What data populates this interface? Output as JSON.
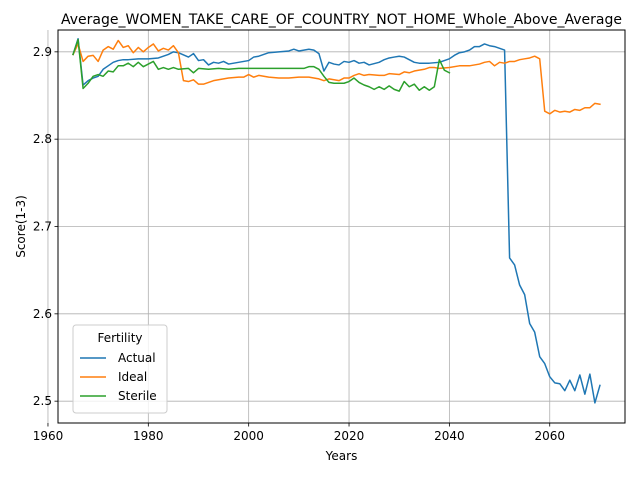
{
  "chart_data": {
    "type": "line",
    "title": "Average_WOMEN_TAKE_CARE_OF_COUNTRY_NOT_HOME_Whole_Above_Average",
    "xlabel": "Years",
    "ylabel": "Score(1-3)",
    "xlim": [
      1962,
      2075
    ],
    "ylim": [
      2.475,
      2.925
    ],
    "xticks": [
      1960,
      1980,
      2000,
      2020,
      2040,
      2060
    ],
    "yticks": [
      2.5,
      2.6,
      2.7,
      2.8,
      2.9
    ],
    "grid": true,
    "legend": {
      "title": "Fertility",
      "position": "lower-left"
    },
    "series": [
      {
        "name": "Actual",
        "color": "#1f77b4",
        "points": [
          [
            1965,
            2.897
          ],
          [
            1966,
            2.915
          ],
          [
            1967,
            2.862
          ],
          [
            1968,
            2.867
          ],
          [
            1969,
            2.87
          ],
          [
            1970,
            2.872
          ],
          [
            1971,
            2.88
          ],
          [
            1972,
            2.884
          ],
          [
            1973,
            2.888
          ],
          [
            1974,
            2.89
          ],
          [
            1975,
            2.891
          ],
          [
            1976,
            2.891
          ],
          [
            1978,
            2.892
          ],
          [
            1980,
            2.892
          ],
          [
            1982,
            2.893
          ],
          [
            1984,
            2.897
          ],
          [
            1985,
            2.9
          ],
          [
            1986,
            2.899
          ],
          [
            1988,
            2.894
          ],
          [
            1989,
            2.898
          ],
          [
            1990,
            2.89
          ],
          [
            1991,
            2.891
          ],
          [
            1992,
            2.885
          ],
          [
            1993,
            2.888
          ],
          [
            1994,
            2.887
          ],
          [
            1995,
            2.889
          ],
          [
            1996,
            2.886
          ],
          [
            1997,
            2.887
          ],
          [
            1998,
            2.888
          ],
          [
            2000,
            2.89
          ],
          [
            2001,
            2.894
          ],
          [
            2002,
            2.895
          ],
          [
            2004,
            2.899
          ],
          [
            2006,
            2.9
          ],
          [
            2008,
            2.901
          ],
          [
            2009,
            2.903
          ],
          [
            2010,
            2.901
          ],
          [
            2011,
            2.902
          ],
          [
            2012,
            2.903
          ],
          [
            2013,
            2.902
          ],
          [
            2014,
            2.898
          ],
          [
            2015,
            2.878
          ],
          [
            2016,
            2.888
          ],
          [
            2017,
            2.886
          ],
          [
            2018,
            2.885
          ],
          [
            2019,
            2.889
          ],
          [
            2020,
            2.888
          ],
          [
            2021,
            2.89
          ],
          [
            2022,
            2.887
          ],
          [
            2023,
            2.888
          ],
          [
            2024,
            2.885
          ],
          [
            2026,
            2.888
          ],
          [
            2027,
            2.891
          ],
          [
            2028,
            2.893
          ],
          [
            2029,
            2.894
          ],
          [
            2030,
            2.895
          ],
          [
            2031,
            2.894
          ],
          [
            2032,
            2.891
          ],
          [
            2033,
            2.888
          ],
          [
            2034,
            2.887
          ],
          [
            2036,
            2.887
          ],
          [
            2038,
            2.888
          ],
          [
            2040,
            2.892
          ],
          [
            2041,
            2.896
          ],
          [
            2042,
            2.899
          ],
          [
            2043,
            2.9
          ],
          [
            2044,
            2.902
          ],
          [
            2045,
            2.906
          ],
          [
            2046,
            2.906
          ],
          [
            2047,
            2.909
          ],
          [
            2048,
            2.907
          ],
          [
            2049,
            2.906
          ],
          [
            2050,
            2.904
          ],
          [
            2051,
            2.902
          ],
          [
            2052,
            2.664
          ],
          [
            2053,
            2.656
          ],
          [
            2054,
            2.633
          ],
          [
            2055,
            2.622
          ],
          [
            2056,
            2.589
          ],
          [
            2057,
            2.579
          ],
          [
            2058,
            2.551
          ],
          [
            2059,
            2.543
          ],
          [
            2060,
            2.528
          ],
          [
            2061,
            2.521
          ],
          [
            2062,
            2.52
          ],
          [
            2063,
            2.512
          ],
          [
            2064,
            2.524
          ],
          [
            2065,
            2.512
          ],
          [
            2066,
            2.53
          ],
          [
            2067,
            2.508
          ],
          [
            2068,
            2.531
          ],
          [
            2069,
            2.498
          ],
          [
            2070,
            2.518
          ]
        ]
      },
      {
        "name": "Ideal",
        "color": "#ff7f0e",
        "points": [
          [
            1965,
            2.897
          ],
          [
            1966,
            2.909
          ],
          [
            1967,
            2.889
          ],
          [
            1968,
            2.895
          ],
          [
            1969,
            2.896
          ],
          [
            1970,
            2.889
          ],
          [
            1971,
            2.902
          ],
          [
            1972,
            2.906
          ],
          [
            1973,
            2.903
          ],
          [
            1974,
            2.913
          ],
          [
            1975,
            2.905
          ],
          [
            1976,
            2.907
          ],
          [
            1977,
            2.899
          ],
          [
            1978,
            2.905
          ],
          [
            1979,
            2.9
          ],
          [
            1980,
            2.905
          ],
          [
            1981,
            2.909
          ],
          [
            1982,
            2.901
          ],
          [
            1983,
            2.904
          ],
          [
            1984,
            2.902
          ],
          [
            1985,
            2.907
          ],
          [
            1986,
            2.899
          ],
          [
            1987,
            2.867
          ],
          [
            1988,
            2.866
          ],
          [
            1989,
            2.868
          ],
          [
            1990,
            2.863
          ],
          [
            1991,
            2.863
          ],
          [
            1992,
            2.865
          ],
          [
            1993,
            2.867
          ],
          [
            1994,
            2.868
          ],
          [
            1996,
            2.87
          ],
          [
            1998,
            2.871
          ],
          [
            1999,
            2.871
          ],
          [
            2000,
            2.874
          ],
          [
            2001,
            2.871
          ],
          [
            2002,
            2.873
          ],
          [
            2004,
            2.871
          ],
          [
            2006,
            2.87
          ],
          [
            2008,
            2.87
          ],
          [
            2010,
            2.871
          ],
          [
            2012,
            2.871
          ],
          [
            2014,
            2.869
          ],
          [
            2015,
            2.867
          ],
          [
            2016,
            2.869
          ],
          [
            2018,
            2.867
          ],
          [
            2019,
            2.87
          ],
          [
            2020,
            2.87
          ],
          [
            2021,
            2.873
          ],
          [
            2022,
            2.875
          ],
          [
            2023,
            2.873
          ],
          [
            2024,
            2.874
          ],
          [
            2026,
            2.873
          ],
          [
            2027,
            2.873
          ],
          [
            2028,
            2.875
          ],
          [
            2030,
            2.874
          ],
          [
            2031,
            2.877
          ],
          [
            2032,
            2.876
          ],
          [
            2033,
            2.878
          ],
          [
            2034,
            2.879
          ],
          [
            2035,
            2.88
          ],
          [
            2036,
            2.882
          ],
          [
            2037,
            2.882
          ],
          [
            2038,
            2.881
          ],
          [
            2040,
            2.882
          ],
          [
            2042,
            2.884
          ],
          [
            2044,
            2.884
          ],
          [
            2046,
            2.886
          ],
          [
            2047,
            2.888
          ],
          [
            2048,
            2.889
          ],
          [
            2049,
            2.884
          ],
          [
            2050,
            2.888
          ],
          [
            2051,
            2.887
          ],
          [
            2052,
            2.889
          ],
          [
            2053,
            2.889
          ],
          [
            2054,
            2.891
          ],
          [
            2055,
            2.892
          ],
          [
            2056,
            2.893
          ],
          [
            2057,
            2.895
          ],
          [
            2058,
            2.892
          ],
          [
            2059,
            2.832
          ],
          [
            2060,
            2.829
          ],
          [
            2061,
            2.833
          ],
          [
            2062,
            2.831
          ],
          [
            2063,
            2.832
          ],
          [
            2064,
            2.831
          ],
          [
            2065,
            2.834
          ],
          [
            2066,
            2.833
          ],
          [
            2067,
            2.836
          ],
          [
            2068,
            2.836
          ],
          [
            2069,
            2.841
          ],
          [
            2070,
            2.84
          ]
        ]
      },
      {
        "name": "Sterile",
        "color": "#2ca02c",
        "points": [
          [
            1965,
            2.897
          ],
          [
            1966,
            2.914
          ],
          [
            1967,
            2.858
          ],
          [
            1968,
            2.864
          ],
          [
            1969,
            2.872
          ],
          [
            1970,
            2.874
          ],
          [
            1971,
            2.872
          ],
          [
            1972,
            2.878
          ],
          [
            1973,
            2.877
          ],
          [
            1974,
            2.884
          ],
          [
            1975,
            2.884
          ],
          [
            1976,
            2.887
          ],
          [
            1977,
            2.883
          ],
          [
            1978,
            2.888
          ],
          [
            1979,
            2.883
          ],
          [
            1980,
            2.886
          ],
          [
            1981,
            2.889
          ],
          [
            1982,
            2.88
          ],
          [
            1983,
            2.882
          ],
          [
            1984,
            2.88
          ],
          [
            1985,
            2.882
          ],
          [
            1986,
            2.88
          ],
          [
            1988,
            2.881
          ],
          [
            1989,
            2.876
          ],
          [
            1990,
            2.881
          ],
          [
            1992,
            2.88
          ],
          [
            1994,
            2.881
          ],
          [
            1996,
            2.88
          ],
          [
            1998,
            2.881
          ],
          [
            2000,
            2.881
          ],
          [
            2004,
            2.881
          ],
          [
            2008,
            2.881
          ],
          [
            2011,
            2.881
          ],
          [
            2012,
            2.883
          ],
          [
            2013,
            2.883
          ],
          [
            2014,
            2.88
          ],
          [
            2015,
            2.872
          ],
          [
            2016,
            2.865
          ],
          [
            2017,
            2.864
          ],
          [
            2018,
            2.864
          ],
          [
            2019,
            2.864
          ],
          [
            2020,
            2.866
          ],
          [
            2021,
            2.87
          ],
          [
            2022,
            2.865
          ],
          [
            2023,
            2.862
          ],
          [
            2024,
            2.86
          ],
          [
            2025,
            2.857
          ],
          [
            2026,
            2.86
          ],
          [
            2027,
            2.857
          ],
          [
            2028,
            2.861
          ],
          [
            2029,
            2.857
          ],
          [
            2030,
            2.855
          ],
          [
            2031,
            2.866
          ],
          [
            2032,
            2.86
          ],
          [
            2033,
            2.863
          ],
          [
            2034,
            2.856
          ],
          [
            2035,
            2.86
          ],
          [
            2036,
            2.856
          ],
          [
            2037,
            2.86
          ],
          [
            2038,
            2.891
          ],
          [
            2039,
            2.879
          ],
          [
            2040,
            2.876
          ]
        ]
      }
    ]
  }
}
